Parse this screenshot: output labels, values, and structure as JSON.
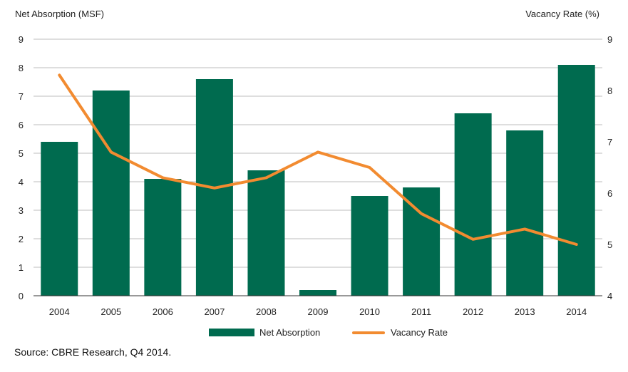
{
  "chart_data": {
    "type": "bar",
    "categories": [
      "2004",
      "2005",
      "2006",
      "2007",
      "2008",
      "2009",
      "2010",
      "2011",
      "2012",
      "2013",
      "2014"
    ],
    "series": [
      {
        "name": "Net Absorption",
        "type": "bar",
        "axis": "left",
        "values": [
          5.4,
          7.2,
          4.1,
          7.6,
          4.4,
          0.2,
          3.5,
          3.8,
          6.4,
          5.8,
          8.1
        ]
      },
      {
        "name": "Vacancy Rate",
        "type": "line",
        "axis": "right",
        "values": [
          8.3,
          6.8,
          6.3,
          6.1,
          6.3,
          6.8,
          6.5,
          5.6,
          5.1,
          5.3,
          5.0
        ]
      }
    ],
    "ylabel": "Net Absorption (MSF)",
    "y2label": "Vacancy Rate (%)",
    "ylim": [
      0,
      9
    ],
    "y2lim": [
      4,
      9
    ],
    "yticks": [
      "0",
      "1",
      "2",
      "3",
      "4",
      "5",
      "6",
      "7",
      "8",
      "9"
    ],
    "y2ticks": [
      "4",
      "5",
      "6",
      "7",
      "8",
      "9"
    ],
    "grid": true,
    "legend": "bottom",
    "colors": {
      "bar": "#006B4F",
      "line": "#F28B30",
      "grid": "#BDBDBD"
    }
  },
  "legend": {
    "bar_label": "Net Absorption",
    "line_label": "Vacancy Rate"
  },
  "source": "Source: CBRE Research, Q4 2014."
}
